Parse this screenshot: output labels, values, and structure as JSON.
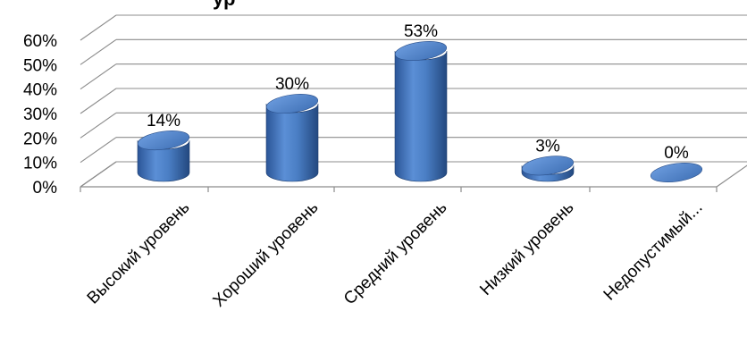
{
  "chart_data": {
    "type": "bar",
    "style": "3d-cylinder",
    "title_fragment": "ур",
    "categories": [
      "Высокий уровень",
      "Хороший уровень",
      "Средний уровень",
      "Низкий уровень",
      "Недопустимый..."
    ],
    "values": [
      14,
      30,
      53,
      3,
      0
    ],
    "data_labels": [
      "14%",
      "30%",
      "53%",
      "3%",
      "0%"
    ],
    "ytick_labels": [
      "0%",
      "10%",
      "20%",
      "30%",
      "40%",
      "50%",
      "60%"
    ],
    "ylim": [
      0,
      60
    ],
    "grid": true,
    "legend": "none",
    "bar_color": "#4a7ec4"
  }
}
